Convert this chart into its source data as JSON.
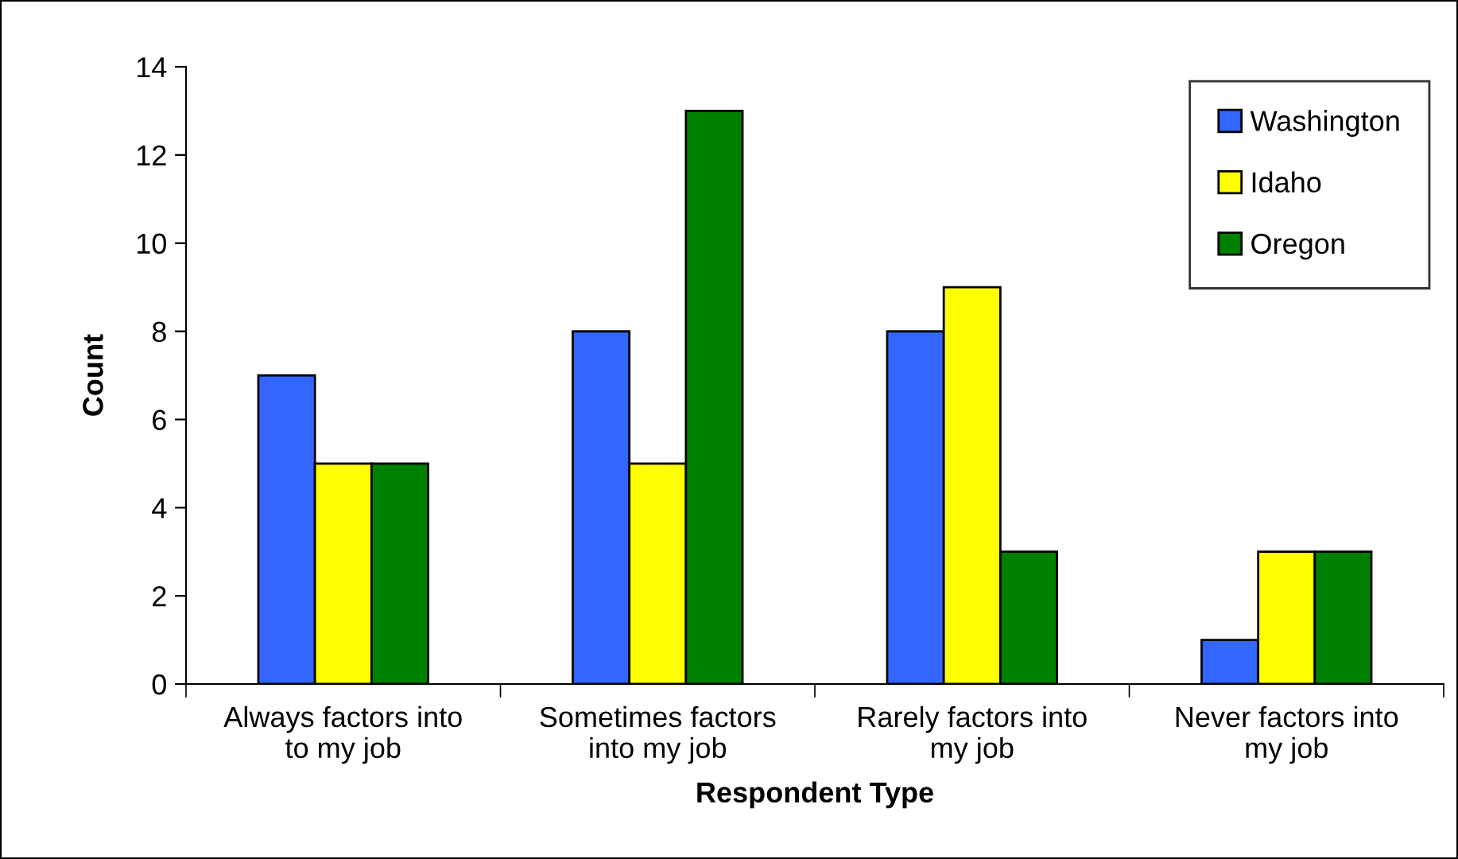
{
  "chart_data": {
    "type": "bar",
    "xlabel": "Respondent Type",
    "ylabel": "Count",
    "categories": [
      "Always factors into\nto my job",
      "Sometimes factors\ninto my job",
      "Rarely factors into\nmy job",
      "Never factors into\nmy job"
    ],
    "series": [
      {
        "name": "Washington",
        "color": "#3366ff",
        "values": [
          7,
          8,
          8,
          1
        ]
      },
      {
        "name": "Idaho",
        "color": "#ffff00",
        "values": [
          5,
          5,
          9,
          3
        ]
      },
      {
        "name": "Oregon",
        "color": "#008000",
        "values": [
          5,
          13,
          3,
          3
        ]
      }
    ],
    "ylim": [
      0,
      14
    ],
    "yticks": [
      0,
      2,
      4,
      6,
      8,
      10,
      12,
      14
    ],
    "grid": false,
    "legend": "top right"
  }
}
